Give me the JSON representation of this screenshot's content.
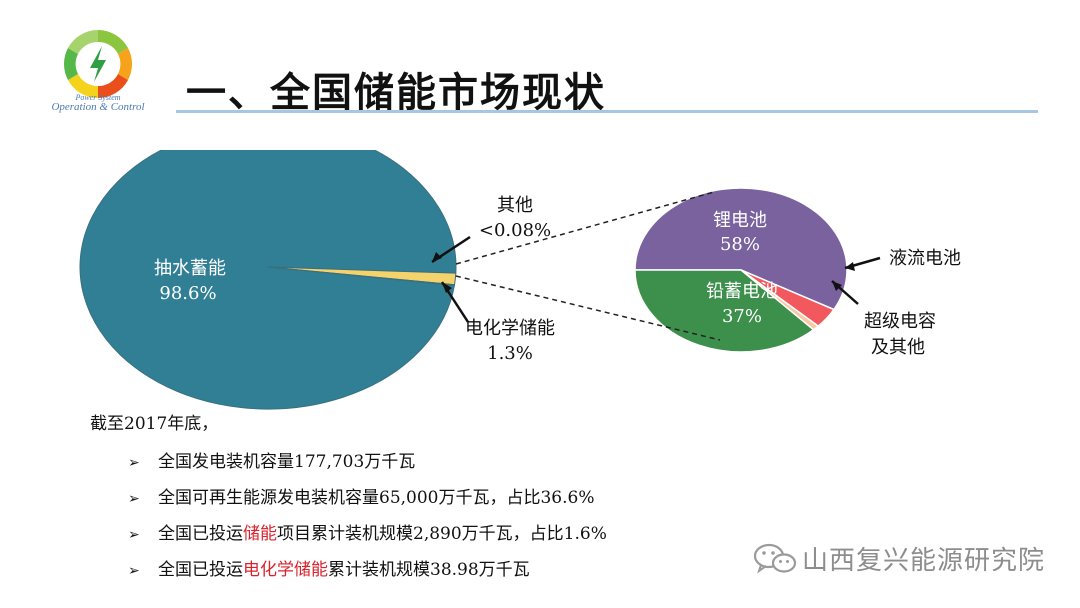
{
  "logo": {
    "caption_line1": "Power System",
    "caption_line2": "Operation & Control"
  },
  "title": "一、全国储能市场现状",
  "chart_data": [
    {
      "type": "pie",
      "slices": [
        {
          "name": "抽水蓄能",
          "value_label": "98.6%",
          "value": 98.6,
          "color": "#317f95"
        },
        {
          "name": "电化学储能",
          "value_label": "1.3%",
          "value": 1.3,
          "color": "#f5d36c"
        },
        {
          "name": "其他",
          "value_label": "<0.08%",
          "value": 0.08,
          "color": "#ffffff"
        }
      ]
    },
    {
      "type": "pie",
      "slices": [
        {
          "name": "锂电池",
          "value_label": "58%",
          "value": 58,
          "color": "#7a629f"
        },
        {
          "name": "液流电池",
          "value_label": "",
          "value": 4,
          "color": "#f2595e"
        },
        {
          "name": "超级电容\n及其他",
          "value_label": "",
          "value": 1,
          "color": "#f6c9a4"
        },
        {
          "name": "铅蓄电池",
          "value_label": "37%",
          "value": 37,
          "color": "#3d8f4c"
        }
      ]
    }
  ],
  "labels": {
    "pumped_name": "抽水蓄能",
    "pumped_pct": "98.6%",
    "other_name": "其他",
    "other_pct": "<0.08%",
    "electro_name": "电化学储能",
    "electro_pct": "1.3%",
    "lithium_name": "锂电池",
    "lithium_pct": "58%",
    "lead_name": "铅蓄电池",
    "lead_pct": "37%",
    "flow_name": "液流电池",
    "supercap_line1": "超级电容",
    "supercap_line2": "及其他"
  },
  "intro": "截至2017年底，",
  "bullet_marker": "➢",
  "bullets": [
    {
      "pre": "全国发电装机容量177,703万千瓦",
      "hl": "",
      "post": ""
    },
    {
      "pre": "全国可再生能源发电装机容量65,000万千瓦，占比36.6%",
      "hl": "",
      "post": ""
    },
    {
      "pre": "全国已投运",
      "hl": "储能",
      "post": "项目累计装机规模2,890万千瓦，占比1.6%"
    },
    {
      "pre": "全国已投运",
      "hl": "电化学储能",
      "post": "累计装机规模38.98万千瓦"
    }
  ],
  "watermark": {
    "text": "山西复兴能源研究院",
    "icon": "wechat-icon"
  }
}
